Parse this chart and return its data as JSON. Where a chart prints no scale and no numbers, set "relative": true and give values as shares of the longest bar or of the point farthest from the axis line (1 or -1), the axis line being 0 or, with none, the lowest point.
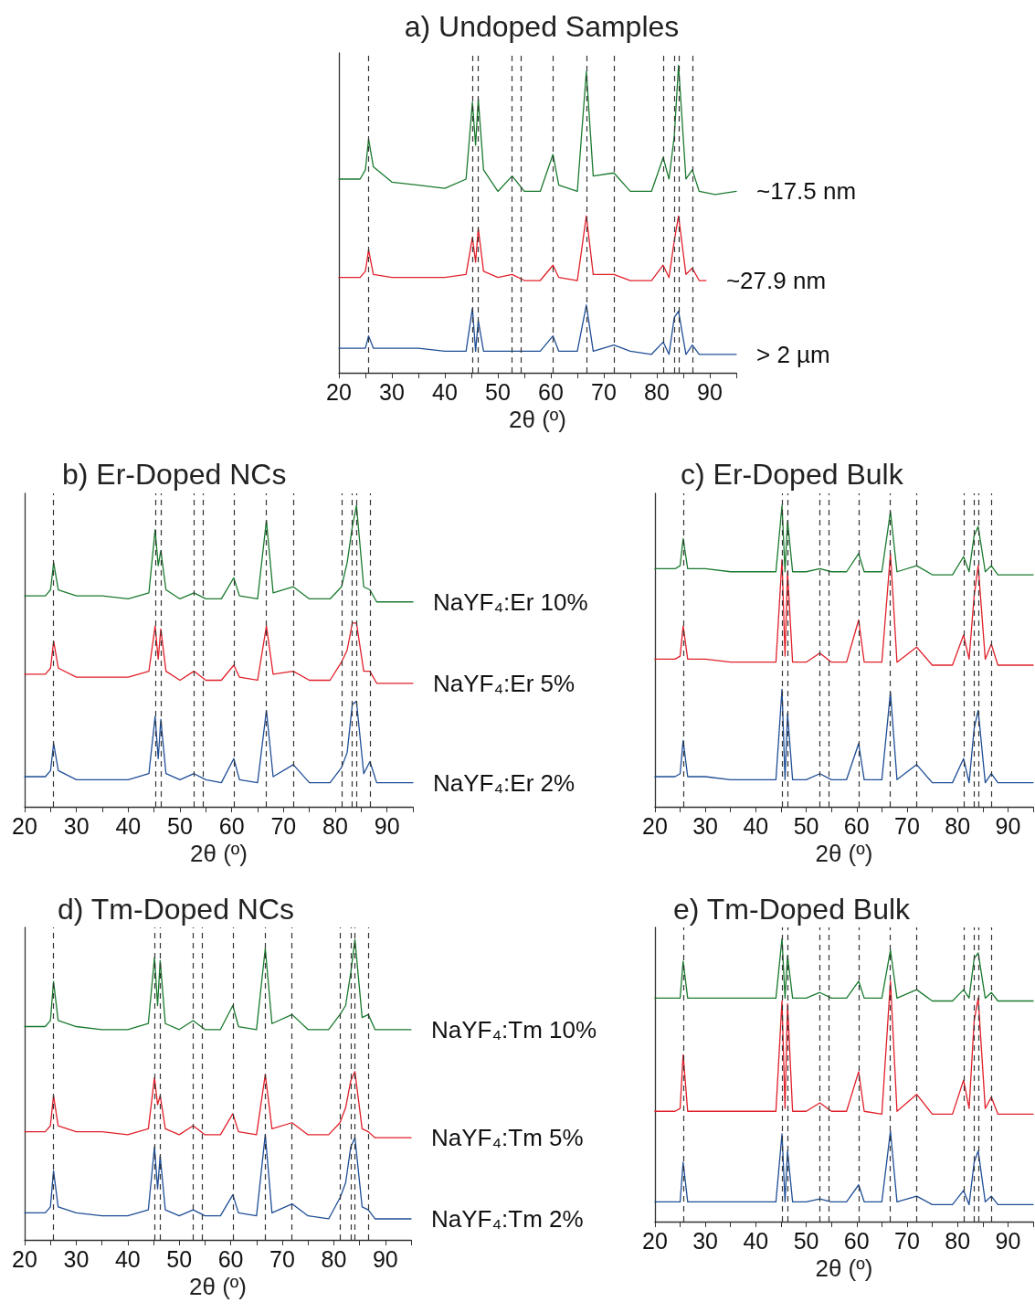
{
  "chart_data": [
    {
      "type": "line",
      "title": "a) Undoped Samples",
      "xlabel": "2θ (º)",
      "relative": true,
      "marker": "none",
      "xlim": [
        20,
        95
      ],
      "xticks": [
        20,
        {
          "value": 25,
          "label": null
        },
        30,
        {
          "value": 35,
          "label": null
        },
        40,
        {
          "value": 45,
          "label": null
        },
        50,
        {
          "value": 55,
          "label": null
        },
        60,
        {
          "value": 65,
          "label": null
        },
        70,
        {
          "value": 75,
          "label": null
        },
        80,
        {
          "value": 85,
          "label": null
        },
        90,
        {
          "value": 95,
          "label": null
        }
      ],
      "x": [
        20,
        24,
        25,
        25.6,
        26.5,
        30,
        35,
        40,
        44,
        45.2,
        45.8,
        46.3,
        47.3,
        50,
        52.7,
        55,
        58,
        60.4,
        61.5,
        65,
        66.7,
        68,
        71.9,
        75,
        79,
        81.2,
        82.3,
        83.3,
        84.1,
        85.5,
        86.7,
        88,
        91,
        95
      ],
      "series": [
        {
          "name": "~17.5 nm",
          "color": "#1a7a2e",
          "values": [
            0.63,
            0.63,
            0.66,
            0.76,
            0.67,
            0.62,
            0.61,
            0.6,
            0.63,
            0.88,
            0.74,
            0.89,
            0.66,
            0.59,
            0.64,
            0.59,
            0.59,
            0.71,
            0.61,
            0.59,
            0.98,
            0.64,
            0.65,
            0.59,
            0.59,
            0.7,
            0.63,
            0.77,
            1.0,
            0.63,
            0.66,
            0.59,
            0.58,
            0.59
          ]
        },
        {
          "name": "~27.9 nm",
          "color": "#e0202a",
          "x": [
            20,
            24,
            25,
            25.6,
            26.5,
            30,
            35,
            40,
            44,
            45.2,
            45.8,
            46.3,
            47.3,
            50,
            52.7,
            55,
            58,
            60.4,
            61.5,
            65,
            66.7,
            68,
            71.9,
            75,
            79,
            81.2,
            82.3,
            83.3,
            84.1,
            85.5,
            86.7,
            88,
            89.3
          ],
          "values": [
            0.31,
            0.31,
            0.33,
            0.4,
            0.32,
            0.31,
            0.31,
            0.31,
            0.32,
            0.44,
            0.36,
            0.47,
            0.33,
            0.31,
            0.32,
            0.3,
            0.3,
            0.35,
            0.31,
            0.3,
            0.51,
            0.32,
            0.32,
            0.3,
            0.3,
            0.35,
            0.31,
            0.43,
            0.51,
            0.32,
            0.34,
            0.3,
            0.3
          ]
        },
        {
          "name": "> 2 µm",
          "color": "#1f4e96",
          "values": [
            0.08,
            0.08,
            0.08,
            0.12,
            0.08,
            0.08,
            0.08,
            0.07,
            0.07,
            0.21,
            0.07,
            0.17,
            0.07,
            0.07,
            0.07,
            0.07,
            0.07,
            0.12,
            0.07,
            0.07,
            0.22,
            0.07,
            0.09,
            0.07,
            0.06,
            0.1,
            0.06,
            0.18,
            0.2,
            0.06,
            0.09,
            0.06,
            0.06,
            0.06
          ]
        }
      ],
      "ref_lines": [
        {
          "axis": "x",
          "value": 25.6,
          "color": "#333333",
          "line_style": "dashed"
        },
        {
          "axis": "x",
          "value": 45.2,
          "color": "#333333",
          "line_style": "dashed"
        },
        {
          "axis": "x",
          "value": 46.3,
          "color": "#333333",
          "line_style": "dashed"
        },
        {
          "axis": "x",
          "value": 52.7,
          "color": "#333333",
          "line_style": "dashed"
        },
        {
          "axis": "x",
          "value": 54.4,
          "color": "#333333",
          "line_style": "dashed"
        },
        {
          "axis": "x",
          "value": 60.4,
          "color": "#333333",
          "line_style": "dashed"
        },
        {
          "axis": "x",
          "value": 66.7,
          "color": "#333333",
          "line_style": "dashed"
        },
        {
          "axis": "x",
          "value": 71.9,
          "color": "#333333",
          "line_style": "dashed"
        },
        {
          "axis": "x",
          "value": 81.2,
          "color": "#333333",
          "line_style": "dashed"
        },
        {
          "axis": "x",
          "value": 83.3,
          "color": "#333333",
          "line_style": "dashed"
        },
        {
          "axis": "x",
          "value": 84.1,
          "color": "#333333",
          "line_style": "dashed"
        },
        {
          "axis": "x",
          "value": 86.7,
          "color": "#333333",
          "line_style": "dashed"
        }
      ]
    },
    {
      "type": "line",
      "title": "b) Er-Doped NCs",
      "xlabel": "2θ (º)",
      "relative": true,
      "marker": "none",
      "xlim": [
        20,
        95
      ],
      "xticks": [
        20,
        {
          "value": 25,
          "label": null
        },
        30,
        {
          "value": 35,
          "label": null
        },
        40,
        {
          "value": 45,
          "label": null
        },
        50,
        {
          "value": 55,
          "label": null
        },
        60,
        {
          "value": 65,
          "label": null
        },
        70,
        {
          "value": 75,
          "label": null
        },
        80,
        {
          "value": 85,
          "label": null
        },
        90,
        {
          "value": 95,
          "label": null
        }
      ],
      "x": [
        20,
        24,
        25,
        25.6,
        26.5,
        30,
        35,
        40,
        44,
        45.2,
        45.8,
        46.3,
        47.3,
        50,
        52.7,
        55,
        58,
        60.4,
        61.5,
        65,
        66.7,
        68,
        71.9,
        75,
        79,
        81.2,
        82.3,
        83.3,
        84.1,
        85.5,
        86.7,
        88,
        91,
        95
      ],
      "series": [
        {
          "name": "NaYF₄:Er 10%",
          "color": "#1a7a2e",
          "values": [
            0.7,
            0.7,
            0.72,
            0.81,
            0.72,
            0.7,
            0.7,
            0.69,
            0.71,
            0.92,
            0.8,
            0.85,
            0.72,
            0.69,
            0.71,
            0.69,
            0.69,
            0.76,
            0.7,
            0.69,
            0.95,
            0.71,
            0.73,
            0.69,
            0.69,
            0.73,
            0.81,
            0.93,
            1.0,
            0.73,
            0.72,
            0.68,
            0.68,
            0.68
          ]
        },
        {
          "name": "NaYF₄:Er 5%",
          "color": "#e0202a",
          "values": [
            0.44,
            0.44,
            0.46,
            0.55,
            0.46,
            0.43,
            0.43,
            0.43,
            0.45,
            0.6,
            0.49,
            0.59,
            0.45,
            0.42,
            0.45,
            0.42,
            0.42,
            0.47,
            0.43,
            0.42,
            0.6,
            0.44,
            0.45,
            0.42,
            0.42,
            0.48,
            0.52,
            0.61,
            0.61,
            0.45,
            0.45,
            0.41,
            0.41,
            0.41
          ]
        },
        {
          "name": "NaYF₄:Er 2%",
          "color": "#1f4e96",
          "values": [
            0.1,
            0.1,
            0.12,
            0.21,
            0.12,
            0.09,
            0.09,
            0.09,
            0.11,
            0.3,
            0.16,
            0.29,
            0.11,
            0.09,
            0.11,
            0.09,
            0.08,
            0.16,
            0.09,
            0.08,
            0.32,
            0.1,
            0.14,
            0.08,
            0.08,
            0.13,
            0.18,
            0.34,
            0.35,
            0.11,
            0.15,
            0.08,
            0.08,
            0.08
          ]
        }
      ],
      "ref_lines": [
        {
          "axis": "x",
          "value": 25.6,
          "color": "#333333",
          "line_style": "dashed"
        },
        {
          "axis": "x",
          "value": 45.2,
          "color": "#333333",
          "line_style": "dashed"
        },
        {
          "axis": "x",
          "value": 46.3,
          "color": "#333333",
          "line_style": "dashed"
        },
        {
          "axis": "x",
          "value": 52.7,
          "color": "#333333",
          "line_style": "dashed"
        },
        {
          "axis": "x",
          "value": 54.4,
          "color": "#333333",
          "line_style": "dashed"
        },
        {
          "axis": "x",
          "value": 60.4,
          "color": "#333333",
          "line_style": "dashed"
        },
        {
          "axis": "x",
          "value": 66.7,
          "color": "#333333",
          "line_style": "dashed"
        },
        {
          "axis": "x",
          "value": 71.9,
          "color": "#333333",
          "line_style": "dashed"
        },
        {
          "axis": "x",
          "value": 81.2,
          "color": "#333333",
          "line_style": "dashed"
        },
        {
          "axis": "x",
          "value": 83.3,
          "color": "#333333",
          "line_style": "dashed"
        },
        {
          "axis": "x",
          "value": 84.1,
          "color": "#333333",
          "line_style": "dashed"
        },
        {
          "axis": "x",
          "value": 86.7,
          "color": "#333333",
          "line_style": "dashed"
        }
      ]
    },
    {
      "type": "line",
      "title": "c) Er-Doped Bulk",
      "xlabel": "2θ (º)",
      "relative": true,
      "marker": "none",
      "xlim": [
        20,
        95
      ],
      "xticks": [
        20,
        {
          "value": 25,
          "label": null
        },
        30,
        {
          "value": 35,
          "label": null
        },
        40,
        {
          "value": 45,
          "label": null
        },
        50,
        {
          "value": 55,
          "label": null
        },
        60,
        {
          "value": 65,
          "label": null
        },
        70,
        {
          "value": 75,
          "label": null
        },
        80,
        {
          "value": 85,
          "label": null
        },
        90,
        {
          "value": 95,
          "label": null
        }
      ],
      "x": [
        20,
        24,
        25,
        25.6,
        26.5,
        30,
        35,
        40,
        44,
        45.2,
        45.8,
        46.3,
        47.3,
        50,
        52.7,
        55,
        58,
        60.4,
        61.5,
        65,
        66.7,
        68,
        71.9,
        75,
        79,
        81.2,
        82.3,
        83.3,
        84.1,
        85.5,
        86.7,
        88,
        91,
        95
      ],
      "series": [
        {
          "color": "#1a7a2e",
          "values": [
            0.79,
            0.79,
            0.8,
            0.89,
            0.79,
            0.79,
            0.78,
            0.78,
            0.78,
            1.0,
            0.78,
            0.95,
            0.78,
            0.78,
            0.79,
            0.78,
            0.78,
            0.84,
            0.78,
            0.78,
            0.98,
            0.78,
            0.8,
            0.77,
            0.77,
            0.83,
            0.78,
            0.9,
            0.93,
            0.78,
            0.8,
            0.77,
            0.77,
            0.77
          ]
        },
        {
          "color": "#e0202a",
          "values": [
            0.49,
            0.49,
            0.5,
            0.6,
            0.49,
            0.49,
            0.48,
            0.48,
            0.48,
            0.82,
            0.5,
            0.78,
            0.48,
            0.48,
            0.51,
            0.48,
            0.48,
            0.62,
            0.48,
            0.48,
            0.84,
            0.48,
            0.53,
            0.47,
            0.47,
            0.57,
            0.49,
            0.7,
            0.8,
            0.49,
            0.54,
            0.47,
            0.47,
            0.47
          ]
        },
        {
          "color": "#1f4e96",
          "values": [
            0.1,
            0.1,
            0.11,
            0.22,
            0.1,
            0.1,
            0.09,
            0.09,
            0.09,
            0.39,
            0.09,
            0.31,
            0.09,
            0.09,
            0.11,
            0.09,
            0.09,
            0.21,
            0.09,
            0.09,
            0.38,
            0.09,
            0.14,
            0.08,
            0.08,
            0.16,
            0.08,
            0.26,
            0.32,
            0.08,
            0.11,
            0.08,
            0.08,
            0.08
          ]
        }
      ],
      "ref_lines": [
        {
          "axis": "x",
          "value": 25.6,
          "color": "#333333",
          "line_style": "dashed"
        },
        {
          "axis": "x",
          "value": 45.2,
          "color": "#333333",
          "line_style": "dashed"
        },
        {
          "axis": "x",
          "value": 46.3,
          "color": "#333333",
          "line_style": "dashed"
        },
        {
          "axis": "x",
          "value": 52.7,
          "color": "#333333",
          "line_style": "dashed"
        },
        {
          "axis": "x",
          "value": 54.4,
          "color": "#333333",
          "line_style": "dashed"
        },
        {
          "axis": "x",
          "value": 60.4,
          "color": "#333333",
          "line_style": "dashed"
        },
        {
          "axis": "x",
          "value": 66.7,
          "color": "#333333",
          "line_style": "dashed"
        },
        {
          "axis": "x",
          "value": 71.9,
          "color": "#333333",
          "line_style": "dashed"
        },
        {
          "axis": "x",
          "value": 81.2,
          "color": "#333333",
          "line_style": "dashed"
        },
        {
          "axis": "x",
          "value": 83.3,
          "color": "#333333",
          "line_style": "dashed"
        },
        {
          "axis": "x",
          "value": 84.1,
          "color": "#333333",
          "line_style": "dashed"
        },
        {
          "axis": "x",
          "value": 86.7,
          "color": "#333333",
          "line_style": "dashed"
        }
      ]
    },
    {
      "type": "line",
      "title": "d) Tm-Doped NCs",
      "xlabel": "2θ (º)",
      "relative": true,
      "marker": "none",
      "xlim": [
        20,
        95
      ],
      "xticks": [
        20,
        {
          "value": 25,
          "label": null
        },
        30,
        {
          "value": 35,
          "label": null
        },
        40,
        {
          "value": 45,
          "label": null
        },
        50,
        {
          "value": 55,
          "label": null
        },
        60,
        {
          "value": 65,
          "label": null
        },
        70,
        {
          "value": 75,
          "label": null
        },
        80,
        {
          "value": 85,
          "label": null
        },
        90,
        {
          "value": 95,
          "label": null
        }
      ],
      "x": [
        20,
        24,
        25,
        25.6,
        26.5,
        30,
        35,
        40,
        44,
        45.2,
        45.8,
        46.3,
        47.3,
        50,
        52.7,
        55,
        58,
        60.4,
        61.5,
        65,
        66.7,
        68,
        71.9,
        75,
        79,
        81.2,
        82.3,
        83.3,
        84.1,
        85.5,
        86.7,
        88,
        91,
        95
      ],
      "series": [
        {
          "name": "NaYF₄:Tm 10%",
          "color": "#1a7a2e",
          "values": [
            0.71,
            0.71,
            0.73,
            0.86,
            0.73,
            0.71,
            0.7,
            0.7,
            0.72,
            0.94,
            0.78,
            0.93,
            0.72,
            0.7,
            0.73,
            0.7,
            0.7,
            0.78,
            0.71,
            0.7,
            0.97,
            0.72,
            0.75,
            0.7,
            0.7,
            0.75,
            0.78,
            0.89,
            1.0,
            0.74,
            0.75,
            0.7,
            0.7,
            0.7
          ]
        },
        {
          "name": "NaYF₄:Tm 5%",
          "color": "#e0202a",
          "values": [
            0.36,
            0.36,
            0.38,
            0.48,
            0.38,
            0.36,
            0.36,
            0.35,
            0.37,
            0.54,
            0.45,
            0.48,
            0.37,
            0.35,
            0.38,
            0.35,
            0.35,
            0.42,
            0.36,
            0.35,
            0.55,
            0.37,
            0.39,
            0.35,
            0.35,
            0.39,
            0.44,
            0.53,
            0.56,
            0.37,
            0.36,
            0.34,
            0.34,
            0.34
          ]
        },
        {
          "name": "NaYF₄:Tm 2%",
          "color": "#1f4e96",
          "values": [
            0.09,
            0.09,
            0.11,
            0.23,
            0.11,
            0.09,
            0.08,
            0.08,
            0.1,
            0.31,
            0.17,
            0.28,
            0.1,
            0.08,
            0.1,
            0.08,
            0.08,
            0.15,
            0.09,
            0.08,
            0.35,
            0.09,
            0.12,
            0.08,
            0.07,
            0.14,
            0.19,
            0.31,
            0.34,
            0.11,
            0.1,
            0.07,
            0.07,
            0.07
          ]
        }
      ],
      "ref_lines": [
        {
          "axis": "x",
          "value": 25.6,
          "color": "#333333",
          "line_style": "dashed"
        },
        {
          "axis": "x",
          "value": 45.2,
          "color": "#333333",
          "line_style": "dashed"
        },
        {
          "axis": "x",
          "value": 46.3,
          "color": "#333333",
          "line_style": "dashed"
        },
        {
          "axis": "x",
          "value": 52.7,
          "color": "#333333",
          "line_style": "dashed"
        },
        {
          "axis": "x",
          "value": 54.4,
          "color": "#333333",
          "line_style": "dashed"
        },
        {
          "axis": "x",
          "value": 60.4,
          "color": "#333333",
          "line_style": "dashed"
        },
        {
          "axis": "x",
          "value": 66.7,
          "color": "#333333",
          "line_style": "dashed"
        },
        {
          "axis": "x",
          "value": 71.9,
          "color": "#333333",
          "line_style": "dashed"
        },
        {
          "axis": "x",
          "value": 81.2,
          "color": "#333333",
          "line_style": "dashed"
        },
        {
          "axis": "x",
          "value": 83.3,
          "color": "#333333",
          "line_style": "dashed"
        },
        {
          "axis": "x",
          "value": 84.1,
          "color": "#333333",
          "line_style": "dashed"
        },
        {
          "axis": "x",
          "value": 86.7,
          "color": "#333333",
          "line_style": "dashed"
        }
      ]
    },
    {
      "type": "line",
      "title": "e) Tm-Doped Bulk",
      "xlabel": "2θ (º)",
      "relative": true,
      "marker": "none",
      "xlim": [
        20,
        95
      ],
      "xticks": [
        20,
        {
          "value": 25,
          "label": null
        },
        30,
        {
          "value": 35,
          "label": null
        },
        40,
        {
          "value": 45,
          "label": null
        },
        50,
        {
          "value": 55,
          "label": null
        },
        60,
        {
          "value": 65,
          "label": null
        },
        70,
        {
          "value": 75,
          "label": null
        },
        80,
        {
          "value": 85,
          "label": null
        },
        90,
        {
          "value": 95,
          "label": null
        }
      ],
      "x": [
        20,
        24,
        25,
        25.6,
        26.5,
        30,
        35,
        40,
        44,
        45.2,
        45.8,
        46.3,
        47.3,
        50,
        52.7,
        55,
        58,
        60.4,
        61.5,
        65,
        66.7,
        68,
        71.9,
        75,
        79,
        81.2,
        82.3,
        83.3,
        84.1,
        85.5,
        86.7,
        88,
        91,
        95
      ],
      "series": [
        {
          "color": "#1a7a2e",
          "values": [
            0.79,
            0.79,
            0.79,
            0.92,
            0.79,
            0.79,
            0.79,
            0.79,
            0.79,
            1.0,
            0.79,
            0.94,
            0.79,
            0.79,
            0.81,
            0.79,
            0.79,
            0.85,
            0.79,
            0.79,
            0.96,
            0.79,
            0.82,
            0.78,
            0.78,
            0.82,
            0.79,
            0.93,
            0.95,
            0.79,
            0.81,
            0.78,
            0.78,
            0.78
          ]
        },
        {
          "color": "#e0202a",
          "values": [
            0.39,
            0.39,
            0.4,
            0.59,
            0.39,
            0.39,
            0.39,
            0.39,
            0.39,
            0.78,
            0.4,
            0.77,
            0.39,
            0.39,
            0.42,
            0.39,
            0.39,
            0.53,
            0.39,
            0.38,
            0.85,
            0.39,
            0.45,
            0.38,
            0.38,
            0.5,
            0.4,
            0.71,
            0.79,
            0.4,
            0.44,
            0.38,
            0.38,
            0.38
          ]
        },
        {
          "color": "#1f4e96",
          "values": [
            0.07,
            0.07,
            0.07,
            0.21,
            0.07,
            0.07,
            0.07,
            0.07,
            0.07,
            0.31,
            0.07,
            0.25,
            0.07,
            0.07,
            0.08,
            0.07,
            0.07,
            0.13,
            0.07,
            0.07,
            0.32,
            0.07,
            0.09,
            0.06,
            0.06,
            0.11,
            0.06,
            0.21,
            0.25,
            0.07,
            0.09,
            0.06,
            0.06,
            0.06
          ]
        }
      ],
      "ref_lines": [
        {
          "axis": "x",
          "value": 25.6,
          "color": "#333333",
          "line_style": "dashed"
        },
        {
          "axis": "x",
          "value": 45.2,
          "color": "#333333",
          "line_style": "dashed"
        },
        {
          "axis": "x",
          "value": 46.3,
          "color": "#333333",
          "line_style": "dashed"
        },
        {
          "axis": "x",
          "value": 52.7,
          "color": "#333333",
          "line_style": "dashed"
        },
        {
          "axis": "x",
          "value": 54.4,
          "color": "#333333",
          "line_style": "dashed"
        },
        {
          "axis": "x",
          "value": 60.4,
          "color": "#333333",
          "line_style": "dashed"
        },
        {
          "axis": "x",
          "value": 66.7,
          "color": "#333333",
          "line_style": "dashed"
        },
        {
          "axis": "x",
          "value": 71.9,
          "color": "#333333",
          "line_style": "dashed"
        },
        {
          "axis": "x",
          "value": 81.2,
          "color": "#333333",
          "line_style": "dashed"
        },
        {
          "axis": "x",
          "value": 83.3,
          "color": "#333333",
          "line_style": "dashed"
        },
        {
          "axis": "x",
          "value": 84.1,
          "color": "#333333",
          "line_style": "dashed"
        },
        {
          "axis": "x",
          "value": 86.7,
          "color": "#333333",
          "line_style": "dashed"
        }
      ]
    }
  ]
}
